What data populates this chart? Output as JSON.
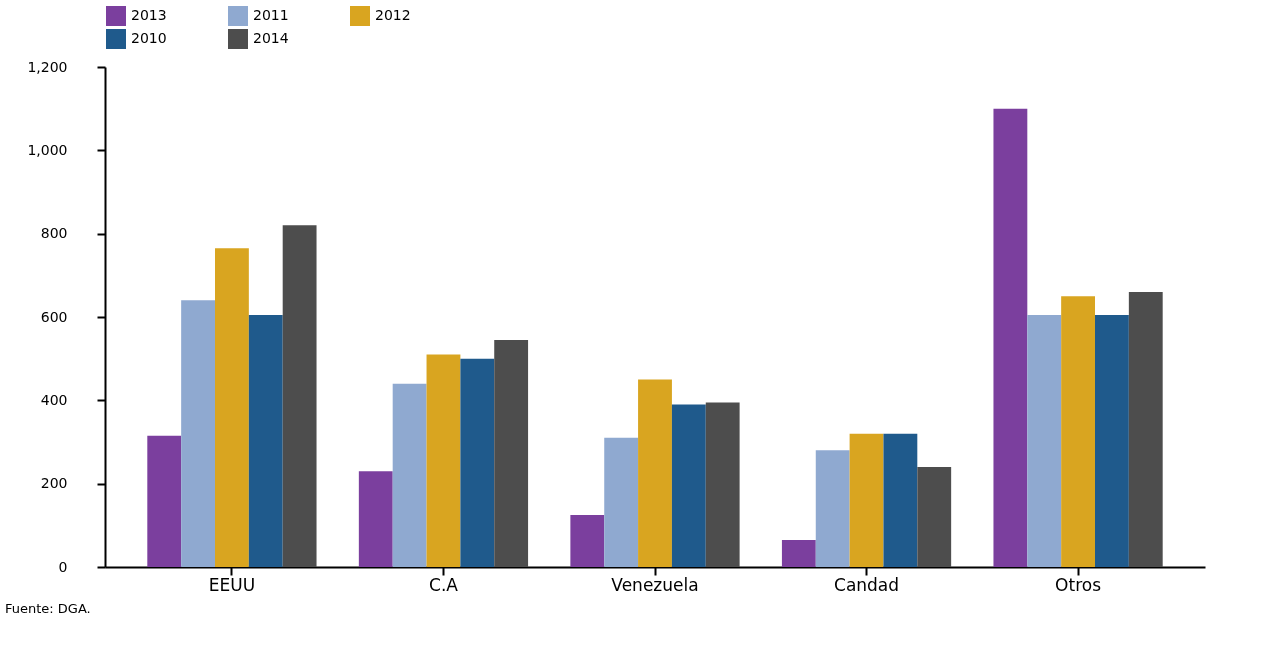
{
  "chart_data": {
    "type": "bar",
    "categories": [
      "EEUU",
      "C.A",
      "Venezuela",
      "Candad",
      "Otros"
    ],
    "series": [
      {
        "name": "2013",
        "color": "#7b3f9e",
        "values": [
          315,
          230,
          125,
          65,
          1100
        ]
      },
      {
        "name": "2011",
        "color": "#8fa9d0",
        "values": [
          640,
          440,
          310,
          280,
          605
        ]
      },
      {
        "name": "2012",
        "color": "#d9a520",
        "values": [
          765,
          510,
          450,
          320,
          650
        ]
      },
      {
        "name": "2010",
        "color": "#1f5a8c",
        "values": [
          605,
          500,
          390,
          320,
          605
        ]
      },
      {
        "name": "2014",
        "color": "#4d4d4d",
        "values": [
          820,
          545,
          395,
          240,
          660
        ]
      }
    ],
    "ylim": [
      0,
      1200
    ],
    "yticks": [
      0,
      200,
      400,
      600,
      800,
      {
        "value": 1000,
        "label": "1,000"
      },
      {
        "value": 1200,
        "label": "1,200"
      }
    ],
    "grid": false,
    "legend": "top",
    "annotations": [
      "Fuente: DGA."
    ]
  }
}
